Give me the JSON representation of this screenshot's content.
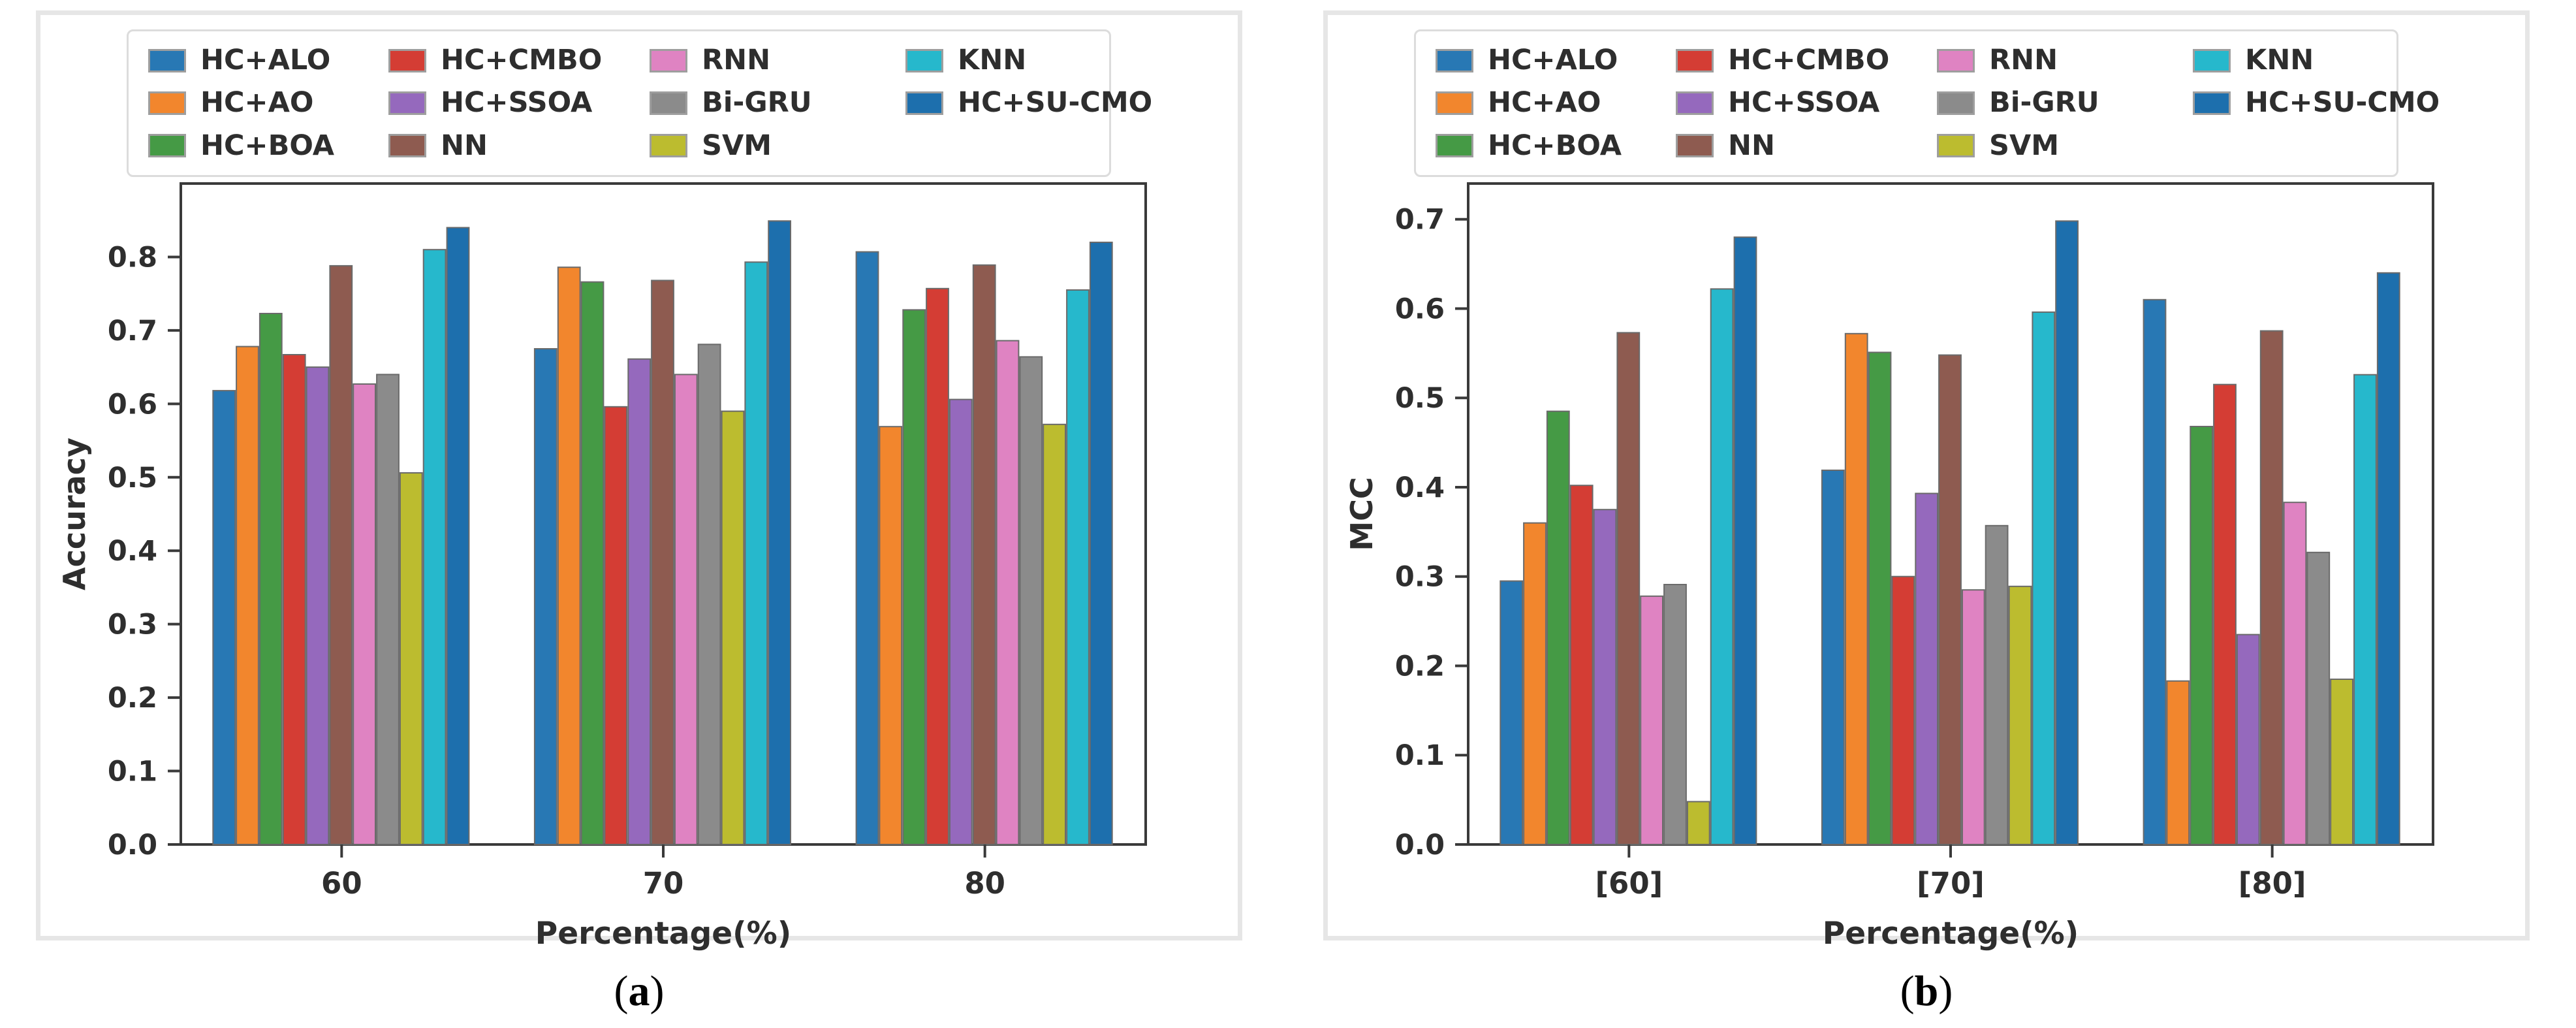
{
  "figure": {
    "background": "#ffffff",
    "panel_border_color": "#e6e6e6",
    "axis_color": "#3a3a3a",
    "bar_edge_color": "#6a6a6a",
    "tick_label_color": "#2e2e2e",
    "legend_columns": 4
  },
  "chart_data": [
    {
      "type": "bar",
      "panel": "a",
      "caption": "(a)",
      "caption_parts": [
        "(",
        "a",
        ")"
      ],
      "title": "",
      "xlabel": "Percentage(%)",
      "ylabel": "Accuracy",
      "categories": [
        "60",
        "70",
        "80"
      ],
      "ylim": [
        0,
        0.9
      ],
      "yticks": [
        "0.0",
        "0.1",
        "0.2",
        "0.3",
        "0.4",
        "0.5",
        "0.6",
        "0.7",
        "0.8"
      ],
      "grid": false,
      "legend_position": "top",
      "series": [
        {
          "name": "HC+ALO",
          "color": "#2878b4",
          "values": [
            0.618,
            0.675,
            0.807
          ]
        },
        {
          "name": "HC+AO",
          "color": "#f2862d",
          "values": [
            0.678,
            0.786,
            0.569
          ]
        },
        {
          "name": "HC+BOA",
          "color": "#459a45",
          "values": [
            0.723,
            0.766,
            0.728
          ]
        },
        {
          "name": "HC+CMBO",
          "color": "#d43d34",
          "values": [
            0.667,
            0.596,
            0.757
          ]
        },
        {
          "name": "HC+SSOA",
          "color": "#9569bd",
          "values": [
            0.65,
            0.661,
            0.606
          ]
        },
        {
          "name": "NN",
          "color": "#8e5b50",
          "values": [
            0.788,
            0.768,
            0.789
          ]
        },
        {
          "name": "RNN",
          "color": "#df83c2",
          "values": [
            0.627,
            0.64,
            0.686
          ]
        },
        {
          "name": "Bi-GRU",
          "color": "#8b8b8b",
          "values": [
            0.64,
            0.681,
            0.664
          ]
        },
        {
          "name": "SVM",
          "color": "#bcbc2f",
          "values": [
            0.506,
            0.59,
            0.572
          ]
        },
        {
          "name": "KNN",
          "color": "#26b8cc",
          "values": [
            0.81,
            0.793,
            0.755
          ]
        },
        {
          "name": "HC+SU-CMO",
          "color": "#1d6fad",
          "values": [
            0.84,
            0.849,
            0.82
          ]
        }
      ]
    },
    {
      "type": "bar",
      "panel": "b",
      "caption": "(b)",
      "caption_parts": [
        "(",
        "b",
        ")"
      ],
      "title": "",
      "xlabel": "Percentage(%)",
      "ylabel": "MCC",
      "categories": [
        "[60]",
        "[70]",
        "[80]"
      ],
      "ylim": [
        0,
        0.74
      ],
      "yticks": [
        "0.0",
        "0.1",
        "0.2",
        "0.3",
        "0.4",
        "0.5",
        "0.6",
        "0.7"
      ],
      "grid": false,
      "legend_position": "top",
      "series": [
        {
          "name": "HC+ALO",
          "color": "#2878b4",
          "values": [
            0.295,
            0.419,
            0.61
          ]
        },
        {
          "name": "HC+AO",
          "color": "#f2862d",
          "values": [
            0.36,
            0.572,
            0.183
          ]
        },
        {
          "name": "HC+BOA",
          "color": "#459a45",
          "values": [
            0.485,
            0.551,
            0.468
          ]
        },
        {
          "name": "HC+CMBO",
          "color": "#d43d34",
          "values": [
            0.402,
            0.3,
            0.515
          ]
        },
        {
          "name": "HC+SSOA",
          "color": "#9569bd",
          "values": [
            0.375,
            0.393,
            0.235
          ]
        },
        {
          "name": "NN",
          "color": "#8e5b50",
          "values": [
            0.573,
            0.548,
            0.575
          ]
        },
        {
          "name": "RNN",
          "color": "#df83c2",
          "values": [
            0.278,
            0.285,
            0.383
          ]
        },
        {
          "name": "Bi-GRU",
          "color": "#8b8b8b",
          "values": [
            0.291,
            0.357,
            0.327
          ]
        },
        {
          "name": "SVM",
          "color": "#bcbc2f",
          "values": [
            0.048,
            0.289,
            0.185
          ]
        },
        {
          "name": "KNN",
          "color": "#26b8cc",
          "values": [
            0.622,
            0.596,
            0.526
          ]
        },
        {
          "name": "HC+SU-CMO",
          "color": "#1d6fad",
          "values": [
            0.68,
            0.698,
            0.64
          ]
        }
      ]
    }
  ]
}
